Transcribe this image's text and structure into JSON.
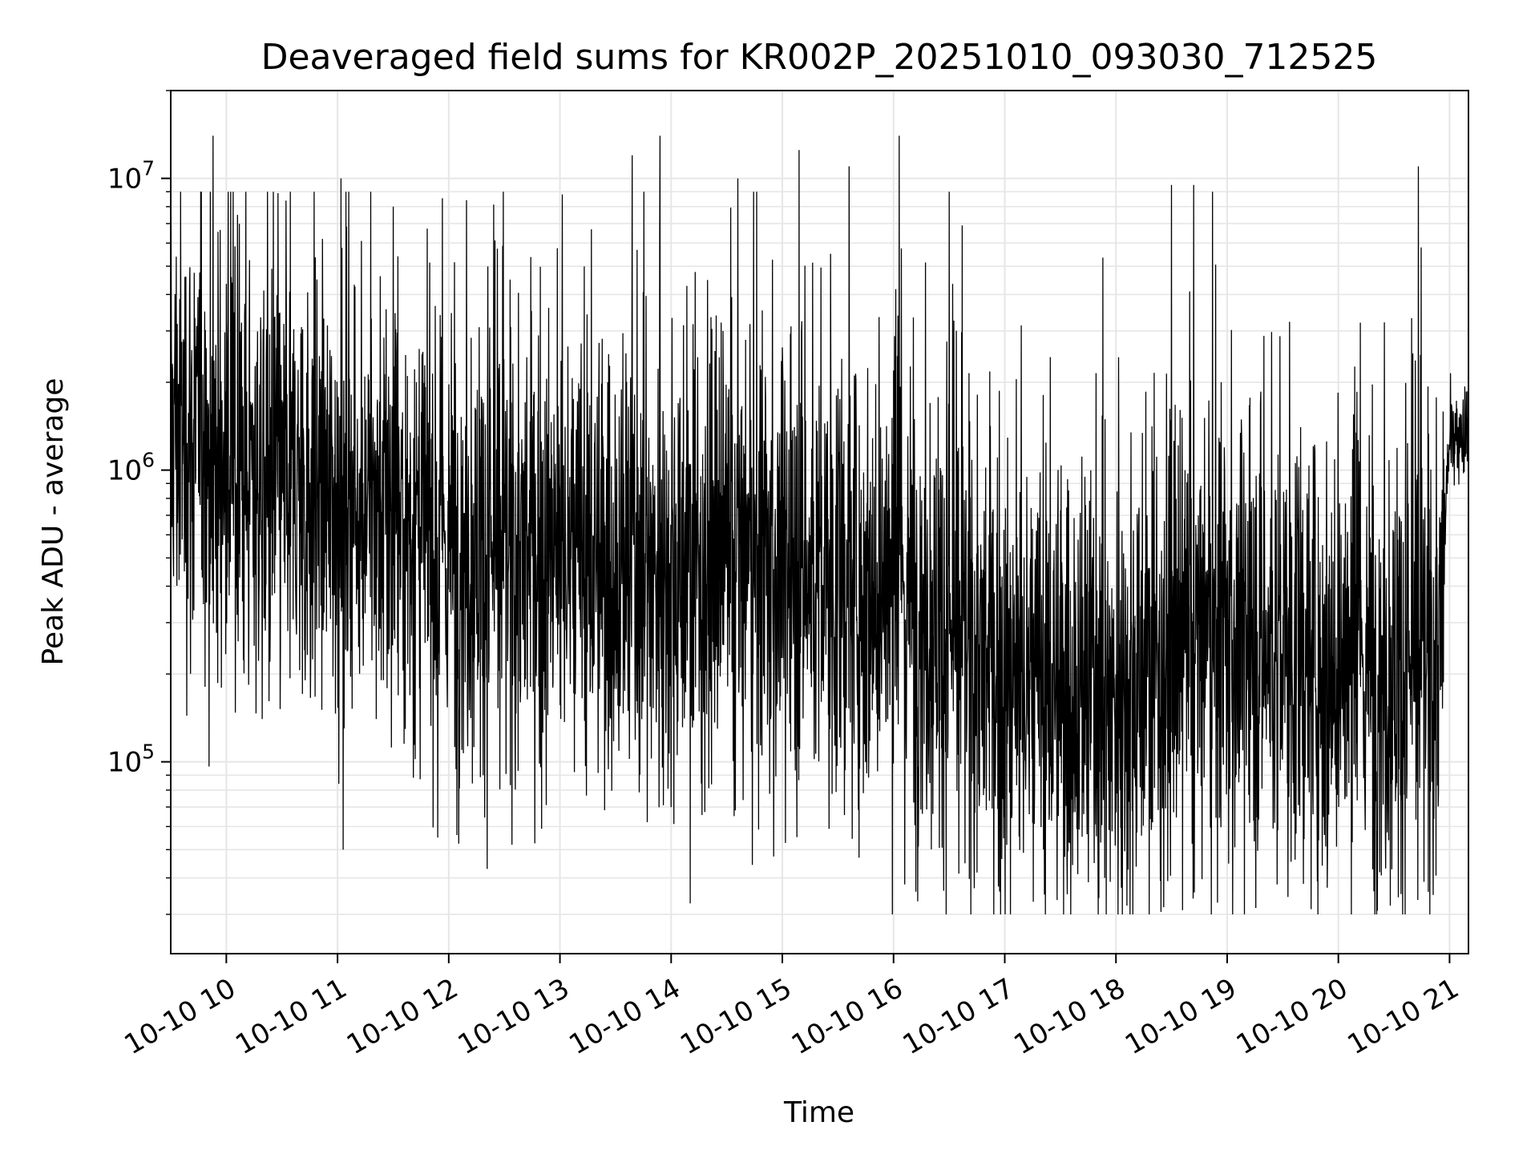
{
  "chart_data": {
    "type": "line",
    "title": "Deaveraged field sums for KR002P_20251010_093030_712525",
    "xlabel": "Time",
    "ylabel": "Peak ADU - average",
    "yscale": "log",
    "xlim_hours": [
      9.5,
      21.17
    ],
    "ylim": [
      22000,
      20000000
    ],
    "grid": true,
    "line_color": "#000000",
    "grid_color": "#e6e6e6",
    "x_ticks": [
      {
        "hour": 10,
        "label": "10-10 10"
      },
      {
        "hour": 11,
        "label": "10-10 11"
      },
      {
        "hour": 12,
        "label": "10-10 12"
      },
      {
        "hour": 13,
        "label": "10-10 13"
      },
      {
        "hour": 14,
        "label": "10-10 14"
      },
      {
        "hour": 15,
        "label": "10-10 15"
      },
      {
        "hour": 16,
        "label": "10-10 16"
      },
      {
        "hour": 17,
        "label": "10-10 17"
      },
      {
        "hour": 18,
        "label": "10-10 18"
      },
      {
        "hour": 19,
        "label": "10-10 19"
      },
      {
        "hour": 20,
        "label": "10-10 20"
      },
      {
        "hour": 21,
        "label": "10-10 21"
      }
    ],
    "y_ticks": [
      {
        "value": 100000,
        "base": "10",
        "exp": "5"
      },
      {
        "value": 1000000,
        "base": "10",
        "exp": "6"
      },
      {
        "value": 10000000,
        "base": "10",
        "exp": "7"
      }
    ],
    "series": [
      {
        "name": "deaveraged field sum",
        "sampling": "dense noisy time series, approx. 1 sample per 3 s; levels below are the approximate median envelope",
        "trend_hours": [
          9.5,
          10.0,
          10.5,
          11.0,
          11.5,
          12.0,
          12.5,
          13.0,
          13.5,
          14.0,
          14.5,
          15.0,
          15.5,
          16.0,
          16.5,
          17.0,
          17.5,
          18.0,
          18.5,
          19.0,
          19.5,
          20.0,
          20.5,
          20.9,
          21.0,
          21.17
        ],
        "trend_values": [
          1500000,
          1000000,
          900000,
          800000,
          700000,
          550000,
          500000,
          500000,
          450000,
          450000,
          450000,
          450000,
          400000,
          400000,
          280000,
          180000,
          170000,
          170000,
          220000,
          260000,
          240000,
          220000,
          200000,
          220000,
          1300000,
          1400000
        ],
        "spike_hours": [
          9.88,
          10.1,
          11.03,
          11.5,
          13.65,
          13.9,
          14.6,
          15.15,
          15.6,
          16.05,
          16.5,
          17.9,
          18.5,
          18.7,
          20.72
        ],
        "spike_values": [
          14000000,
          7500000,
          10000000,
          8000000,
          12000000,
          14000000,
          10000000,
          12500000,
          11000000,
          14000000,
          9000000,
          10000000,
          9500000,
          9500000,
          11000000
        ],
        "dip_hours": [
          11.05,
          11.9,
          16.1,
          17.05,
          17.9,
          18.6,
          19.45,
          19.9
        ],
        "dip_values": [
          50000,
          55000,
          38000,
          30000,
          40000,
          31000,
          38000,
          37000
        ]
      }
    ]
  }
}
